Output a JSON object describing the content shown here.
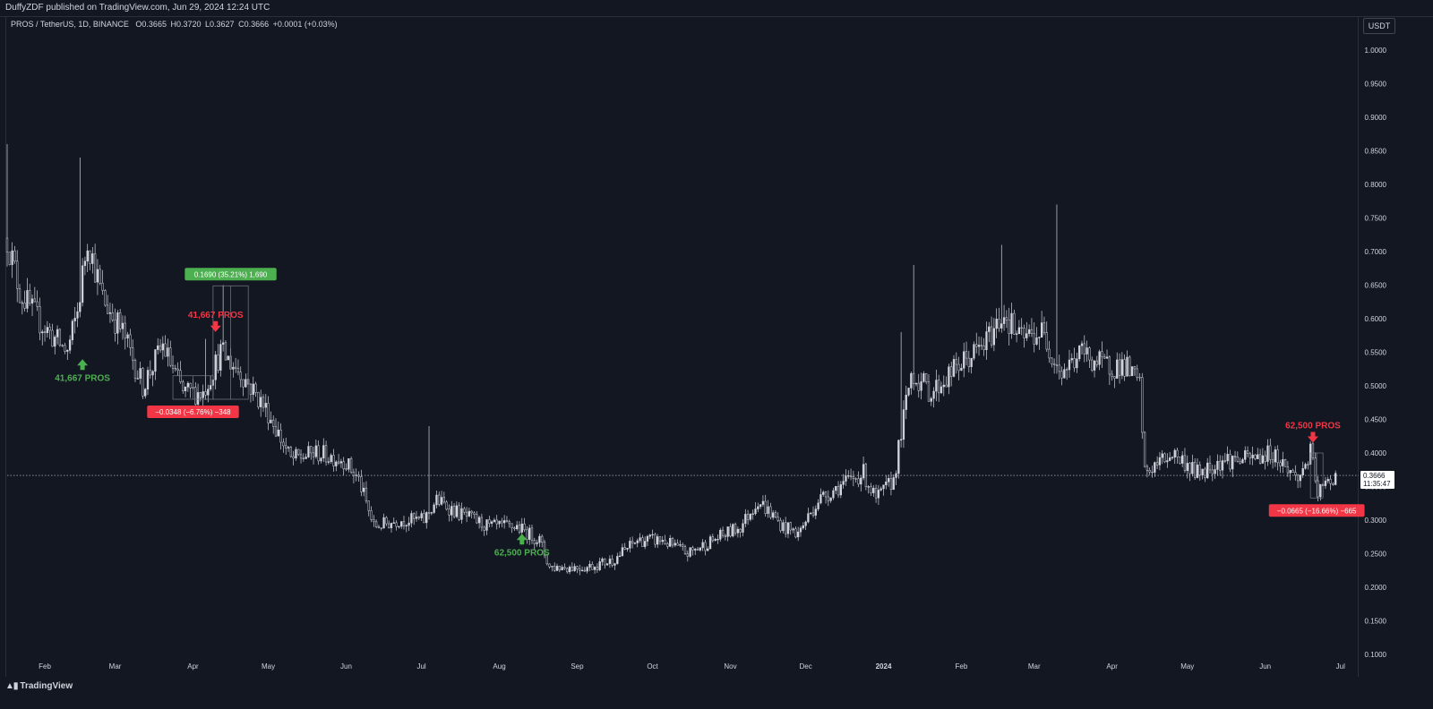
{
  "header": {
    "publisher_text": "DuffyZDF published on TradingView.com, Jun 29, 2024 12:24 UTC"
  },
  "legend": {
    "symbol": "PROS / TetherUS, 1D, BINANCE",
    "open_label": "O",
    "open": "0.3665",
    "high_label": "H",
    "high": "0.3720",
    "low_label": "L",
    "low": "0.3627",
    "close_label": "C",
    "close": "0.3666",
    "change": "+0.0001 (+0.03%)"
  },
  "currency_button": "USDT",
  "footer": {
    "brand": "TradingView",
    "logo_icon": "tradingview-logo-icon"
  },
  "last_price": {
    "value": "0.3666",
    "countdown": "11:35:47"
  },
  "colors": {
    "background": "#131722",
    "candle": "#d1d4dc",
    "buy": "#4caf50",
    "sell": "#f23645",
    "grid": "#2a2e39"
  },
  "chart_data": {
    "type": "candlestick",
    "ylim": [
      0.1,
      1.0
    ],
    "y_ticks": [
      "1.0000",
      "0.9500",
      "0.9000",
      "0.8500",
      "0.8000",
      "0.7500",
      "0.7000",
      "0.6500",
      "0.6000",
      "0.5500",
      "0.5000",
      "0.4500",
      "0.4000",
      "0.3500",
      "0.3000",
      "0.2500",
      "0.2000",
      "0.1500",
      "0.1000"
    ],
    "x_ticks": [
      "Feb",
      "Mar",
      "Apr",
      "May",
      "Jun",
      "Jul",
      "Aug",
      "Sep",
      "Oct",
      "Nov",
      "Dec",
      "2024",
      "Feb",
      "Mar",
      "Apr",
      "May",
      "Jun",
      "Jul"
    ],
    "x_range": [
      "2023-01-17",
      "2024-07-05"
    ],
    "price_path": [
      [
        "2023-01-17",
        0.72
      ],
      [
        "2023-01-22",
        0.64
      ],
      [
        "2023-01-29",
        0.6
      ],
      [
        "2023-02-05",
        0.57
      ],
      [
        "2023-02-10",
        0.55
      ],
      [
        "2023-02-14",
        0.61
      ],
      [
        "2023-02-18",
        0.72
      ],
      [
        "2023-02-24",
        0.63
      ],
      [
        "2023-03-04",
        0.58
      ],
      [
        "2023-03-12",
        0.5
      ],
      [
        "2023-03-20",
        0.56
      ],
      [
        "2023-03-28",
        0.49
      ],
      [
        "2023-04-05",
        0.49
      ],
      [
        "2023-04-12",
        0.55
      ],
      [
        "2023-04-20",
        0.52
      ],
      [
        "2023-05-01",
        0.46
      ],
      [
        "2023-05-10",
        0.39
      ],
      [
        "2023-05-20",
        0.4
      ],
      [
        "2023-05-31",
        0.39
      ],
      [
        "2023-06-06",
        0.36
      ],
      [
        "2023-06-12",
        0.29
      ],
      [
        "2023-06-22",
        0.3
      ],
      [
        "2023-07-02",
        0.3
      ],
      [
        "2023-07-07",
        0.33
      ],
      [
        "2023-07-16",
        0.31
      ],
      [
        "2023-07-28",
        0.29
      ],
      [
        "2023-08-08",
        0.29
      ],
      [
        "2023-08-17",
        0.27
      ],
      [
        "2023-08-21",
        0.23
      ],
      [
        "2023-09-05",
        0.23
      ],
      [
        "2023-09-15",
        0.24
      ],
      [
        "2023-09-25",
        0.27
      ],
      [
        "2023-10-05",
        0.27
      ],
      [
        "2023-10-15",
        0.25
      ],
      [
        "2023-10-25",
        0.27
      ],
      [
        "2023-11-05",
        0.29
      ],
      [
        "2023-11-12",
        0.33
      ],
      [
        "2023-11-22",
        0.29
      ],
      [
        "2023-11-28",
        0.28
      ],
      [
        "2023-12-06",
        0.33
      ],
      [
        "2023-12-14",
        0.35
      ],
      [
        "2023-12-24",
        0.37
      ],
      [
        "2023-12-29",
        0.33
      ],
      [
        "2024-01-05",
        0.36
      ],
      [
        "2024-01-12",
        0.52
      ],
      [
        "2024-01-20",
        0.49
      ],
      [
        "2024-01-31",
        0.53
      ],
      [
        "2024-02-10",
        0.56
      ],
      [
        "2024-02-18",
        0.61
      ],
      [
        "2024-02-24",
        0.57
      ],
      [
        "2024-03-04",
        0.58
      ],
      [
        "2024-03-12",
        0.52
      ],
      [
        "2024-03-20",
        0.55
      ],
      [
        "2024-03-28",
        0.53
      ],
      [
        "2024-04-06",
        0.53
      ],
      [
        "2024-04-12",
        0.5
      ],
      [
        "2024-04-14",
        0.37
      ],
      [
        "2024-04-25",
        0.4
      ],
      [
        "2024-05-05",
        0.37
      ],
      [
        "2024-05-15",
        0.39
      ],
      [
        "2024-05-25",
        0.39
      ],
      [
        "2024-06-04",
        0.4
      ],
      [
        "2024-06-14",
        0.36
      ],
      [
        "2024-06-19",
        0.4
      ],
      [
        "2024-06-22",
        0.34
      ],
      [
        "2024-06-29",
        0.367
      ]
    ],
    "spikes": [
      [
        "2023-01-17",
        0.86
      ],
      [
        "2023-02-15",
        0.84
      ],
      [
        "2023-04-06",
        0.57
      ],
      [
        "2023-04-13",
        0.65
      ],
      [
        "2023-07-04",
        0.44
      ],
      [
        "2024-01-13",
        0.68
      ],
      [
        "2024-02-17",
        0.71
      ],
      [
        "2024-03-10",
        0.77
      ],
      [
        "2024-01-08",
        0.58
      ]
    ],
    "annotations": [
      {
        "type": "buy",
        "label": "41,667 PROS",
        "date": "2023-02-16",
        "price": 0.545
      },
      {
        "type": "sell",
        "label": "41,667 PROS",
        "date": "2023-04-10",
        "price": 0.575
      },
      {
        "type": "buy",
        "label": "62,500 PROS",
        "date": "2023-08-10",
        "price": 0.285
      },
      {
        "type": "sell",
        "label": "62,500 PROS",
        "date": "2024-06-20",
        "price": 0.41
      }
    ],
    "measures": [
      {
        "label": "0.1690 (35.21%) 1,690",
        "color": "green",
        "date_from": "2023-04-09",
        "date_to": "2023-04-23",
        "price_from": 0.48,
        "price_to": 0.649
      },
      {
        "label": "−0.0348 (−6.76%) −348",
        "color": "red",
        "date_from": "2023-03-24",
        "date_to": "2023-04-09",
        "price_from": 0.515,
        "price_to": 0.48
      },
      {
        "label": "−0.0665 (−16.66%) −665",
        "color": "red",
        "date_from": "2024-06-19",
        "date_to": "2024-06-24",
        "price_from": 0.4,
        "price_to": 0.333
      }
    ],
    "last_price_line": 0.3666
  }
}
